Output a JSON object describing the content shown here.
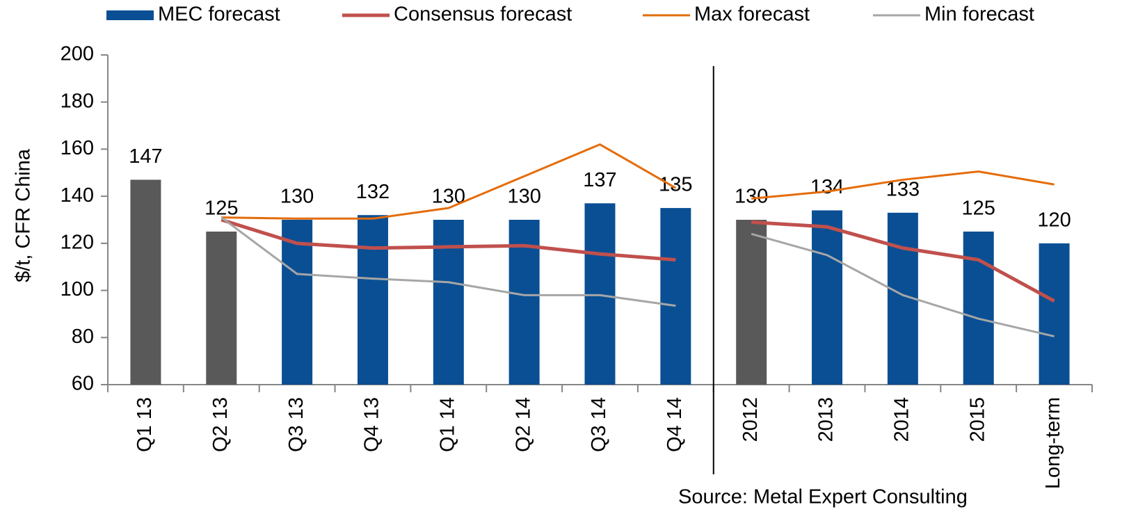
{
  "chart_data": {
    "type": "bar_line",
    "ylabel": "$/t, CFR China",
    "source": "Source: Metal Expert Consulting",
    "categories": [
      "Q1 13",
      "Q2 13",
      "Q3 13",
      "Q4 13",
      "Q1 14",
      "Q2 14",
      "Q3 14",
      "Q4 14",
      "2012",
      "2013",
      "2014",
      "2015",
      "Long-term"
    ],
    "divider_after": 7,
    "ylim": [
      60,
      200
    ],
    "yticks": [
      60,
      80,
      100,
      120,
      140,
      160,
      180,
      200
    ],
    "series": [
      {
        "name": "MEC forecast",
        "type": "bar",
        "color": "#0a4f94",
        "point_colors": [
          "#595959",
          "#595959",
          "#0a4f94",
          "#0a4f94",
          "#0a4f94",
          "#0a4f94",
          "#0a4f94",
          "#0a4f94",
          "#595959",
          "#0a4f94",
          "#0a4f94",
          "#0a4f94",
          "#0a4f94"
        ],
        "values": [
          147,
          125,
          130,
          132,
          130,
          130,
          137,
          135,
          130,
          134,
          133,
          125,
          120
        ]
      },
      {
        "name": "Consensus forecast",
        "type": "line",
        "color": "#c0504d",
        "values": [
          null,
          130,
          120,
          118,
          118.5,
          119,
          115.5,
          113,
          129,
          127,
          118,
          113,
          95.5
        ]
      },
      {
        "name": "Max forecast",
        "type": "line",
        "color": "#e46c0a",
        "values": [
          null,
          131,
          130.5,
          130.5,
          135,
          148.5,
          162,
          143.5,
          139,
          142,
          147,
          150.5,
          145
        ]
      },
      {
        "name": "Min forecast",
        "type": "line",
        "color": "#a6a6a6",
        "values": [
          null,
          131,
          107,
          105,
          103.5,
          98,
          98,
          93.5,
          124,
          115,
          98,
          88,
          80.5
        ]
      }
    ]
  }
}
